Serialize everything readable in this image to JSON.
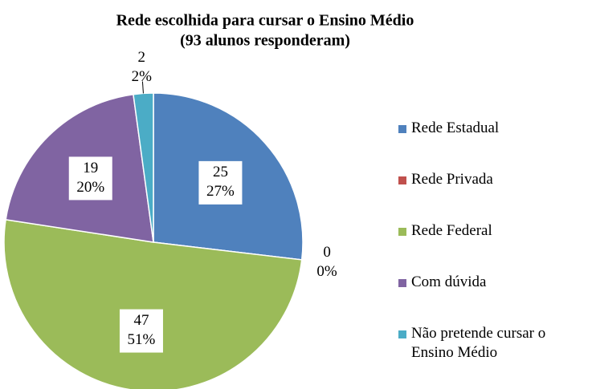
{
  "chart_data": {
    "type": "pie",
    "title": "Rede escolhida para cursar o Ensino Médio",
    "subtitle": "(93 alunos responderam)",
    "categories": [
      "Rede Estadual",
      "Rede Privada",
      "Rede Federal",
      "Com dúvida",
      "Não pretende cursar o Ensino Médio"
    ],
    "values": [
      25,
      0,
      47,
      19,
      2
    ],
    "value_labels": [
      "27%",
      "0%",
      "51%",
      "20%",
      "2%"
    ],
    "colors": [
      "#4f81bd",
      "#c0504d",
      "#9bbb59",
      "#8064a2",
      "#4bacc6"
    ],
    "legend": "right"
  }
}
